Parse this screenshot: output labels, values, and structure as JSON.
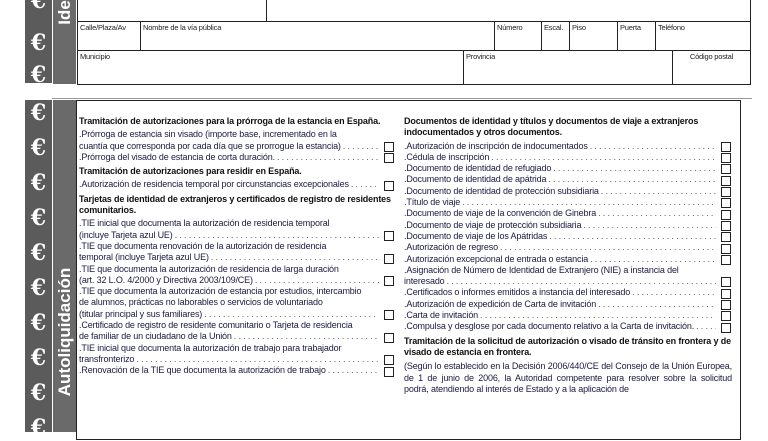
{
  "sidebar": {
    "euro_symbol": "€",
    "identification_label": "Identificación",
    "self_assessment_label": "Autoliquidación"
  },
  "address_fields": {
    "street_type": "Calle/Plaza/Av",
    "street_name": "Nombre de la vía pública",
    "number": "Número",
    "staircase": "Escal.",
    "floor": "Piso",
    "door": "Puerta",
    "phone": "Teléfono",
    "municipality": "Municipio",
    "province": "Provincia",
    "postal_code": "Código postal"
  },
  "left_column": [
    {
      "type": "heading",
      "text": "Tramitación de autorizaciones para la prórroga de la estancia en España."
    },
    {
      "type": "item",
      "lines": [
        ".Prórroga de estancia sin visado (importe base, incrementado en la",
        "cuantía que corresponda por cada día que se prorrogue la estancia)"
      ],
      "checked": false
    },
    {
      "type": "item",
      "lines": [
        ".Prórroga del visado de estancia de corta duración."
      ],
      "checked": false
    },
    {
      "type": "heading",
      "text": "Tramitación de autorizaciones para residir en España."
    },
    {
      "type": "item",
      "lines": [
        ".Autorización de residencia temporal por circunstancias excepcionales"
      ],
      "checked": false
    },
    {
      "type": "heading",
      "text": "Tarjetas de identidad de extranjeros y certificados de registro de residentes comunitarios."
    },
    {
      "type": "item",
      "lines": [
        ".TIE inicial que documenta la autorización de residencia temporal",
        "(incluye Tarjeta azul UE)"
      ],
      "checked": false
    },
    {
      "type": "item",
      "lines": [
        ".TIE que documenta renovación de la autorización de residencia",
        "temporal (incluye Tarjeta azul UE)"
      ],
      "checked": false
    },
    {
      "type": "item",
      "lines": [
        ".TIE que documenta la autorización de residencia de larga duración",
        "(art. 32 L.O. 4/2000 y Directiva 2003/109/CE)"
      ],
      "checked": false
    },
    {
      "type": "item",
      "lines": [
        ".TIE que documenta la autorización de estancia por estudios, intercambio",
        "de alumnos, prácticas no laborables o servicios de voluntariado",
        "(titular principal y sus familiares)"
      ],
      "checked": false
    },
    {
      "type": "item",
      "lines": [
        ".Certificado de registro de residente comunitario o Tarjeta de residencia",
        "de familiar de un ciudadano de la Unión"
      ],
      "checked": false
    },
    {
      "type": "item",
      "lines": [
        ".TIE inicial que documenta la autorización de trabajo para trabajador",
        "transfronterizo"
      ],
      "checked": false
    },
    {
      "type": "item",
      "lines": [
        ".Renovación de la TIE que documenta la autorización de trabajo"
      ],
      "checked": false
    }
  ],
  "right_column": [
    {
      "type": "heading",
      "text": "Documentos de identidad y títulos y documentos de viaje a extranjeros indocumentados y otros documentos."
    },
    {
      "type": "item",
      "lines": [
        ".Autorización de inscripción de indocumentados"
      ],
      "checked": false
    },
    {
      "type": "item",
      "lines": [
        ".Cédula de inscripción"
      ],
      "checked": false
    },
    {
      "type": "item",
      "lines": [
        ".Documento de identidad de refugiado"
      ],
      "checked": false
    },
    {
      "type": "item",
      "lines": [
        ".Documento de identidad de apátrida"
      ],
      "checked": false
    },
    {
      "type": "item",
      "lines": [
        ".Documento de identidad de protección subsidiaria"
      ],
      "checked": false
    },
    {
      "type": "item",
      "lines": [
        ".Título de viaje"
      ],
      "checked": false
    },
    {
      "type": "item",
      "lines": [
        ".Documento de viaje de la convención de Ginebra"
      ],
      "checked": false
    },
    {
      "type": "item",
      "lines": [
        ".Documento de viaje de protección subsidiaria"
      ],
      "checked": false
    },
    {
      "type": "item",
      "lines": [
        ".Documento de viaje de los Apátridas"
      ],
      "checked": false
    },
    {
      "type": "item",
      "lines": [
        ".Autorización de regreso"
      ],
      "checked": false
    },
    {
      "type": "item",
      "lines": [
        ".Autorización excepcional de entrada o estancia"
      ],
      "checked": false
    },
    {
      "type": "item",
      "lines": [
        ".Asignación de Número de Identidad de Extranjero (NIE) a instancia del",
        "interesado"
      ],
      "checked": false
    },
    {
      "type": "item",
      "lines": [
        ".Certificados o informes emitidos a instancia del interesado"
      ],
      "checked": false
    },
    {
      "type": "item",
      "lines": [
        ".Autorización de expedición de Carta de invitación"
      ],
      "checked": false
    },
    {
      "type": "item",
      "lines": [
        ".Carta de invitación"
      ],
      "checked": false
    },
    {
      "type": "item",
      "lines": [
        ".Compulsa y desglose por cada documento relativo a la Carta de invitación."
      ],
      "checked": false
    },
    {
      "type": "heading",
      "text": "Tramitación de la solicitud de autorización o visado de tránsito en frontera y de visado de estancia en frontera."
    },
    {
      "type": "para",
      "text": "(Según lo establecido en la Decisión 2006/440/CE del Consejo de la Unión Europea, de 1 de junio de 2006, la Autoridad competente para resolver sobre la solicitud podrá, atendiendo al interés de Estado y a la aplicación de"
    }
  ]
}
